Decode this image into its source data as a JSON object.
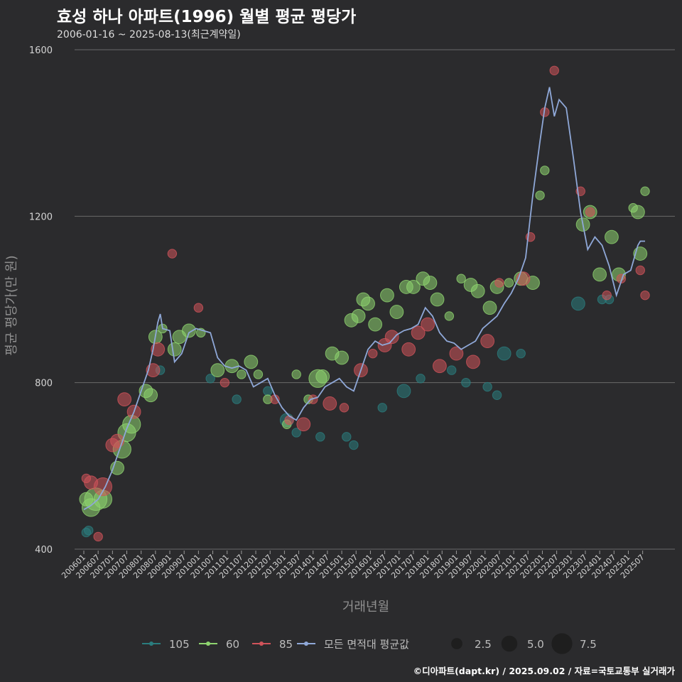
{
  "header": {
    "title": "효성 하나 아파트(1996) 월별 평균 평당가",
    "subtitle": "2006-01-16 ~ 2025-08-13(최근계약일)"
  },
  "caption": "©디아파트(dapt.kr) / 2025.09.02 / 자료=국토교통부 실거래가",
  "colors": {
    "background": "#2b2b2d",
    "grid": "#6a6a6a",
    "s105": "#2a7d7e",
    "s60": "#8ed46f",
    "s85": "#d0535a",
    "avg": "#8fa8d8"
  },
  "chart_data": {
    "type": "scatter",
    "xlabel": "거래년월",
    "ylabel": "평균 평당가(만 원)",
    "ylim": [
      400,
      1600
    ],
    "yticks": [
      400,
      800,
      1200,
      1600
    ],
    "x_range": [
      "2006-01",
      "2025-08"
    ],
    "xticks": [
      "200601",
      "200607",
      "200701",
      "200707",
      "200801",
      "200807",
      "200901",
      "200907",
      "201001",
      "201007",
      "201101",
      "201107",
      "201201",
      "201207",
      "201301",
      "201307",
      "201401",
      "201407",
      "201501",
      "201507",
      "201601",
      "201607",
      "201701",
      "201707",
      "201801",
      "201807",
      "201901",
      "201907",
      "202001",
      "202007",
      "202101",
      "202107",
      "202201",
      "202207",
      "202301",
      "202307",
      "202401",
      "202407",
      "202501",
      "202507"
    ],
    "legend": {
      "series": [
        {
          "key": "s105",
          "label": "105"
        },
        {
          "key": "s60",
          "label": "60"
        },
        {
          "key": "s85",
          "label": "85"
        },
        {
          "key": "avg",
          "label": "모든 면적대 평균값"
        }
      ],
      "sizes": [
        {
          "value": 2.5,
          "label": "2.5"
        },
        {
          "value": 5.0,
          "label": "5.0"
        },
        {
          "value": 7.5,
          "label": "7.5"
        }
      ]
    },
    "average_line": {
      "name": "모든 면적대 평균값",
      "points": [
        [
          "2006-01",
          495
        ],
        [
          "2006-04",
          505
        ],
        [
          "2006-07",
          520
        ],
        [
          "2006-10",
          550
        ],
        [
          "2007-01",
          590
        ],
        [
          "2007-04",
          640
        ],
        [
          "2007-07",
          690
        ],
        [
          "2007-10",
          730
        ],
        [
          "2008-01",
          780
        ],
        [
          "2008-04",
          830
        ],
        [
          "2008-06",
          880
        ],
        [
          "2008-08",
          945
        ],
        [
          "2008-09",
          965
        ],
        [
          "2008-10",
          930
        ],
        [
          "2009-01",
          925
        ],
        [
          "2009-03",
          850
        ],
        [
          "2009-06",
          870
        ],
        [
          "2009-09",
          920
        ],
        [
          "2009-12",
          930
        ],
        [
          "2010-03",
          925
        ],
        [
          "2010-06",
          920
        ],
        [
          "2010-09",
          860
        ],
        [
          "2010-12",
          840
        ],
        [
          "2011-03",
          835
        ],
        [
          "2011-06",
          840
        ],
        [
          "2011-09",
          830
        ],
        [
          "2011-12",
          790
        ],
        [
          "2012-03",
          800
        ],
        [
          "2012-06",
          810
        ],
        [
          "2012-09",
          770
        ],
        [
          "2012-12",
          740
        ],
        [
          "2013-03",
          720
        ],
        [
          "2013-06",
          710
        ],
        [
          "2013-09",
          740
        ],
        [
          "2013-12",
          760
        ],
        [
          "2014-03",
          765
        ],
        [
          "2014-06",
          790
        ],
        [
          "2014-09",
          800
        ],
        [
          "2014-12",
          810
        ],
        [
          "2015-03",
          790
        ],
        [
          "2015-06",
          780
        ],
        [
          "2015-09",
          830
        ],
        [
          "2015-12",
          880
        ],
        [
          "2016-03",
          900
        ],
        [
          "2016-06",
          890
        ],
        [
          "2016-09",
          895
        ],
        [
          "2016-12",
          915
        ],
        [
          "2017-03",
          925
        ],
        [
          "2017-06",
          930
        ],
        [
          "2017-09",
          940
        ],
        [
          "2017-12",
          980
        ],
        [
          "2018-03",
          960
        ],
        [
          "2018-06",
          920
        ],
        [
          "2018-09",
          900
        ],
        [
          "2018-12",
          895
        ],
        [
          "2019-03",
          880
        ],
        [
          "2019-06",
          890
        ],
        [
          "2019-09",
          900
        ],
        [
          "2019-12",
          930
        ],
        [
          "2020-03",
          945
        ],
        [
          "2020-06",
          960
        ],
        [
          "2020-09",
          990
        ],
        [
          "2020-12",
          1015
        ],
        [
          "2021-03",
          1050
        ],
        [
          "2021-06",
          1100
        ],
        [
          "2021-09",
          1250
        ],
        [
          "2021-12",
          1380
        ],
        [
          "2022-02",
          1460
        ],
        [
          "2022-04",
          1510
        ],
        [
          "2022-06",
          1440
        ],
        [
          "2022-08",
          1480
        ],
        [
          "2022-11",
          1460
        ],
        [
          "2023-02",
          1340
        ],
        [
          "2023-05",
          1210
        ],
        [
          "2023-08",
          1120
        ],
        [
          "2023-11",
          1150
        ],
        [
          "2024-02",
          1130
        ],
        [
          "2024-05",
          1080
        ],
        [
          "2024-08",
          1010
        ],
        [
          "2024-11",
          1060
        ],
        [
          "2025-02",
          1070
        ],
        [
          "2025-05",
          1130
        ],
        [
          "2025-06",
          1140
        ],
        [
          "2025-08",
          1140
        ]
      ]
    },
    "series": [
      {
        "name": "105",
        "points": [
          [
            "2006-02",
            440,
            1
          ],
          [
            "2006-03",
            445,
            1
          ],
          [
            "2008-09",
            830,
            1
          ],
          [
            "2010-06",
            810,
            1
          ],
          [
            "2011-05",
            760,
            1
          ],
          [
            "2012-06",
            780,
            1
          ],
          [
            "2013-02",
            710,
            2
          ],
          [
            "2013-06",
            680,
            1
          ],
          [
            "2014-04",
            670,
            1
          ],
          [
            "2015-03",
            670,
            1
          ],
          [
            "2015-06",
            650,
            1
          ],
          [
            "2016-06",
            740,
            1
          ],
          [
            "2017-03",
            780,
            2
          ],
          [
            "2017-10",
            810,
            1
          ],
          [
            "2018-11",
            830,
            1
          ],
          [
            "2019-05",
            800,
            1
          ],
          [
            "2020-02",
            790,
            1
          ],
          [
            "2020-06",
            770,
            1
          ],
          [
            "2020-09",
            870,
            2
          ],
          [
            "2021-04",
            870,
            1
          ],
          [
            "2023-04",
            990,
            2
          ],
          [
            "2024-02",
            1000,
            1
          ],
          [
            "2024-05",
            1000,
            1
          ]
        ]
      },
      {
        "name": "60",
        "points": [
          [
            "2006-02",
            520,
            2
          ],
          [
            "2006-04",
            500,
            3
          ],
          [
            "2006-06",
            520,
            4
          ],
          [
            "2006-09",
            520,
            3
          ],
          [
            "2007-03",
            595,
            2
          ],
          [
            "2007-05",
            640,
            3
          ],
          [
            "2007-07",
            680,
            3
          ],
          [
            "2007-09",
            700,
            3
          ],
          [
            "2008-03",
            780,
            2
          ],
          [
            "2008-05",
            770,
            2
          ],
          [
            "2008-07",
            910,
            2
          ],
          [
            "2008-10",
            930,
            1
          ],
          [
            "2009-03",
            880,
            2
          ],
          [
            "2009-05",
            910,
            2
          ],
          [
            "2009-09",
            925,
            2
          ],
          [
            "2010-02",
            920,
            1
          ],
          [
            "2010-09",
            830,
            2
          ],
          [
            "2011-03",
            840,
            2
          ],
          [
            "2011-07",
            820,
            1
          ],
          [
            "2011-11",
            850,
            2
          ],
          [
            "2012-02",
            820,
            1
          ],
          [
            "2012-06",
            760,
            1
          ],
          [
            "2013-02",
            700,
            1
          ],
          [
            "2013-06",
            820,
            1
          ],
          [
            "2013-11",
            760,
            1
          ],
          [
            "2014-03",
            810,
            3
          ],
          [
            "2014-05",
            815,
            2
          ],
          [
            "2014-09",
            870,
            2
          ],
          [
            "2015-01",
            860,
            2
          ],
          [
            "2015-05",
            950,
            2
          ],
          [
            "2015-08",
            960,
            2
          ],
          [
            "2015-10",
            1000,
            2
          ],
          [
            "2015-12",
            990,
            2
          ],
          [
            "2016-03",
            940,
            2
          ],
          [
            "2016-08",
            1010,
            2
          ],
          [
            "2016-12",
            970,
            2
          ],
          [
            "2017-04",
            1030,
            2
          ],
          [
            "2017-07",
            1030,
            2
          ],
          [
            "2017-11",
            1050,
            2
          ],
          [
            "2018-02",
            1040,
            2
          ],
          [
            "2018-05",
            1000,
            2
          ],
          [
            "2018-10",
            960,
            1
          ],
          [
            "2019-03",
            1050,
            1
          ],
          [
            "2019-07",
            1035,
            2
          ],
          [
            "2019-10",
            1020,
            2
          ],
          [
            "2020-03",
            980,
            2
          ],
          [
            "2020-06",
            1030,
            2
          ],
          [
            "2020-11",
            1040,
            1
          ],
          [
            "2021-04",
            1050,
            2
          ],
          [
            "2021-09",
            1040,
            2
          ],
          [
            "2021-12",
            1250,
            1
          ],
          [
            "2022-02",
            1310,
            1
          ],
          [
            "2023-06",
            1180,
            2
          ],
          [
            "2023-09",
            1210,
            2
          ],
          [
            "2024-01",
            1060,
            2
          ],
          [
            "2024-06",
            1150,
            2
          ],
          [
            "2024-09",
            1060,
            2
          ],
          [
            "2025-03",
            1220,
            1
          ],
          [
            "2025-05",
            1210,
            2
          ],
          [
            "2025-06",
            1110,
            2
          ],
          [
            "2025-08",
            1260,
            1
          ]
        ]
      },
      {
        "name": "85",
        "points": [
          [
            "2006-02",
            570,
            1
          ],
          [
            "2006-04",
            560,
            2
          ],
          [
            "2006-07",
            430,
            1
          ],
          [
            "2006-09",
            550,
            3
          ],
          [
            "2007-01",
            650,
            2
          ],
          [
            "2007-03",
            660,
            2
          ],
          [
            "2007-06",
            760,
            2
          ],
          [
            "2007-10",
            730,
            2
          ],
          [
            "2008-06",
            830,
            2
          ],
          [
            "2008-08",
            880,
            2
          ],
          [
            "2009-02",
            1110,
            1
          ],
          [
            "2010-01",
            980,
            1
          ],
          [
            "2010-12",
            800,
            1
          ],
          [
            "2012-09",
            760,
            1
          ],
          [
            "2013-03",
            710,
            1
          ],
          [
            "2013-09",
            700,
            2
          ],
          [
            "2014-01",
            760,
            1
          ],
          [
            "2014-08",
            750,
            2
          ],
          [
            "2015-02",
            740,
            1
          ],
          [
            "2015-09",
            830,
            2
          ],
          [
            "2016-02",
            870,
            1
          ],
          [
            "2016-07",
            890,
            2
          ],
          [
            "2016-10",
            910,
            2
          ],
          [
            "2017-05",
            880,
            2
          ],
          [
            "2017-09",
            920,
            2
          ],
          [
            "2018-01",
            940,
            2
          ],
          [
            "2018-06",
            840,
            2
          ],
          [
            "2019-01",
            870,
            2
          ],
          [
            "2019-08",
            850,
            2
          ],
          [
            "2020-02",
            900,
            2
          ],
          [
            "2020-07",
            1040,
            1
          ],
          [
            "2021-05",
            1050,
            2
          ],
          [
            "2021-08",
            1150,
            1
          ],
          [
            "2022-02",
            1450,
            1
          ],
          [
            "2022-06",
            1550,
            1
          ],
          [
            "2023-05",
            1260,
            1
          ],
          [
            "2023-09",
            1210,
            1
          ],
          [
            "2024-04",
            1010,
            1
          ],
          [
            "2024-10",
            1050,
            1
          ],
          [
            "2025-06",
            1070,
            1
          ],
          [
            "2025-08",
            1010,
            1
          ]
        ]
      }
    ]
  }
}
